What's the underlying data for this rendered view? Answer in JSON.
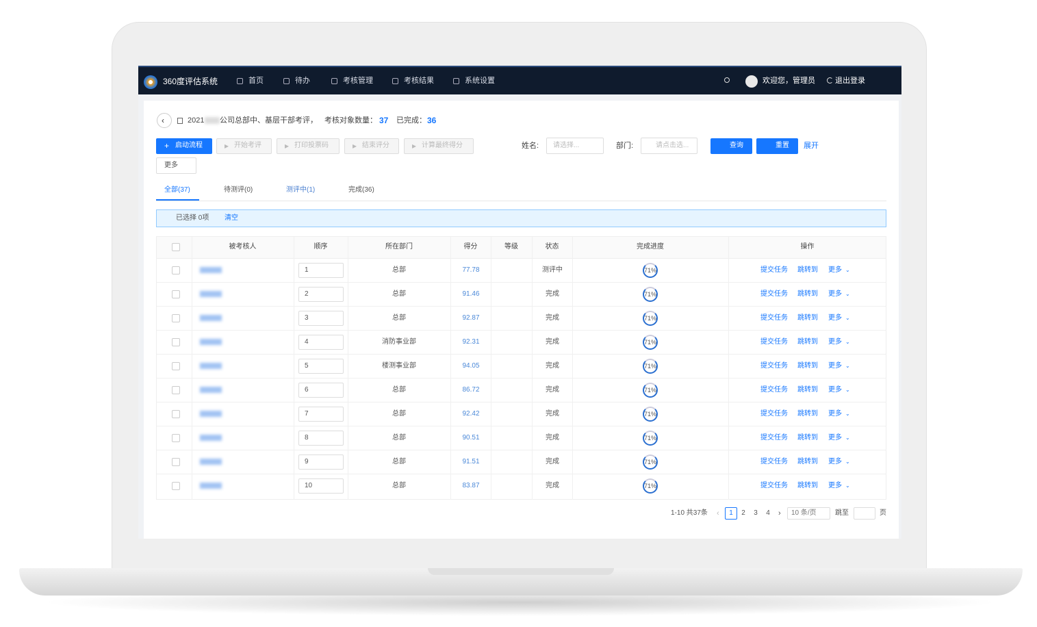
{
  "app": {
    "title": "360度评估系统",
    "nav": [
      "首页",
      "待办",
      "考核管理",
      "考核结果",
      "系统设置"
    ],
    "welcome": "欢迎您，管理员",
    "logout": "退出登录"
  },
  "header": {
    "year": "2021",
    "name": "公司总部中、基层干部考评，",
    "count_label": "考核对象数量：",
    "count": "37",
    "done_label": "已完成：",
    "done": "36"
  },
  "toolbar": {
    "buttons": [
      "启动流程",
      "开始考评",
      "打印投票码",
      "结束评分",
      "计算最终得分"
    ],
    "more": "更多",
    "name_label": "姓名:",
    "name_placeholder": "请选择...",
    "dept_label": "部门:",
    "dept_placeholder": "请点击选...",
    "search": "查询",
    "reset": "重置",
    "expand": "展开"
  },
  "tabs": [
    "全部(37)",
    "待测评(0)",
    "测评中(1)",
    "完成(36)"
  ],
  "selection": {
    "text": "已选择 0项",
    "clear": "清空"
  },
  "table": {
    "columns": [
      "被考核人",
      "顺序",
      "所在部门",
      "得分",
      "等级",
      "状态",
      "完成进度",
      "操作"
    ],
    "actions": [
      "提交任务",
      "跳转到",
      "更多"
    ],
    "rows": [
      {
        "order": "1",
        "dept": "总部",
        "score": "77.78",
        "status": "测评中",
        "progress": "71%"
      },
      {
        "order": "2",
        "dept": "总部",
        "score": "91.46",
        "status": "完成",
        "progress": "71%"
      },
      {
        "order": "3",
        "dept": "总部",
        "score": "92.87",
        "status": "完成",
        "progress": "71%"
      },
      {
        "order": "4",
        "dept": "消防事业部",
        "score": "92.31",
        "status": "完成",
        "progress": "71%"
      },
      {
        "order": "5",
        "dept": "楼测事业部",
        "score": "94.05",
        "status": "完成",
        "progress": "71%"
      },
      {
        "order": "6",
        "dept": "总部",
        "score": "86.72",
        "status": "完成",
        "progress": "71%"
      },
      {
        "order": "7",
        "dept": "总部",
        "score": "92.42",
        "status": "完成",
        "progress": "71%"
      },
      {
        "order": "8",
        "dept": "总部",
        "score": "90.51",
        "status": "完成",
        "progress": "71%"
      },
      {
        "order": "9",
        "dept": "总部",
        "score": "91.51",
        "status": "完成",
        "progress": "71%"
      },
      {
        "order": "10",
        "dept": "总部",
        "score": "83.87",
        "status": "完成",
        "progress": "71%"
      }
    ]
  },
  "pagination": {
    "summary": "1-10 共37条",
    "pages": [
      "1",
      "2",
      "3",
      "4"
    ],
    "page_size": "10 条/页",
    "jump": "跳至",
    "page": "页"
  }
}
